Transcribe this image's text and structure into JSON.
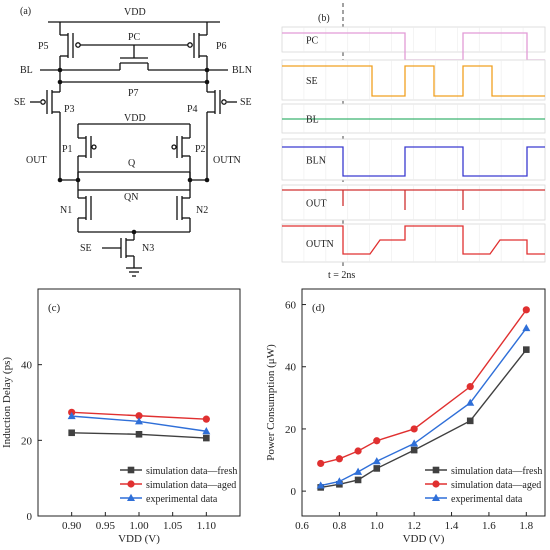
{
  "panels": {
    "a": "(a)",
    "b": "(b)",
    "c": "(c)",
    "d": "(d)"
  },
  "schematic": {
    "vdd_top": "VDD",
    "vdd_inner": "VDD",
    "labels": [
      "P5",
      "P6",
      "PC",
      "BL",
      "BLN",
      "P7",
      "SE",
      "SE",
      "P3",
      "P4",
      "P1",
      "P2",
      "Q",
      "QN",
      "OUT",
      "OUTN",
      "N1",
      "N2",
      "SE",
      "N3"
    ]
  },
  "waveforms": {
    "signals": [
      "PC",
      "SE",
      "BL",
      "BLN",
      "OUT",
      "OUTN"
    ],
    "colors": [
      "#e29bd6",
      "#f0a020",
      "#3cb371",
      "#3a3ad0",
      "#d03030",
      "#e03030"
    ],
    "marker_label": "t = 2ns"
  },
  "chart_data": [
    {
      "type": "line",
      "panel": "(c)",
      "xlabel": "VDD (V)",
      "ylabel": "Induction Delay (ps)",
      "xlim": [
        0.85,
        1.15
      ],
      "ylim": [
        0,
        60
      ],
      "xticks": [
        "0.90",
        "0.95",
        "1.00",
        "1.05",
        "1.10"
      ],
      "yticks": [
        "0",
        "20",
        "40"
      ],
      "x": [
        0.9,
        1.0,
        1.1
      ],
      "series": [
        {
          "name": "simulation data—fresh",
          "color": "#404040",
          "marker": "square",
          "values": [
            22.0,
            21.6,
            20.6
          ]
        },
        {
          "name": "simulation data—aged",
          "color": "#e03030",
          "marker": "circle",
          "values": [
            27.4,
            26.5,
            25.6
          ]
        },
        {
          "name": "experimental data",
          "color": "#2f6fd8",
          "marker": "triangle",
          "values": [
            26.4,
            25.0,
            22.4
          ]
        }
      ],
      "legend": "bottom-right"
    },
    {
      "type": "line",
      "panel": "(d)",
      "xlabel": "VDD (V)",
      "ylabel": "Power Consumption (μW)",
      "xlim": [
        0.6,
        1.9
      ],
      "ylim": [
        -8,
        65
      ],
      "xticks": [
        "0.6",
        "0.8",
        "1.0",
        "1.2",
        "1.4",
        "1.6",
        "1.8"
      ],
      "yticks": [
        "0",
        "20",
        "40",
        "60"
      ],
      "x": [
        0.7,
        0.8,
        0.9,
        1.0,
        1.2,
        1.5,
        1.8
      ],
      "series": [
        {
          "name": "simulation data—fresh",
          "color": "#404040",
          "marker": "square",
          "values": [
            1.2,
            2.2,
            3.6,
            7.3,
            13.2,
            22.6,
            45.5
          ]
        },
        {
          "name": "simulation data—aged",
          "color": "#e03030",
          "marker": "circle",
          "values": [
            8.9,
            10.4,
            12.9,
            16.2,
            20.0,
            33.6,
            58.3
          ]
        },
        {
          "name": "experimental data",
          "color": "#2f6fd8",
          "marker": "triangle",
          "values": [
            1.8,
            3.1,
            6.2,
            9.6,
            15.3,
            28.4,
            52.4
          ]
        }
      ],
      "legend": "bottom-right"
    }
  ]
}
